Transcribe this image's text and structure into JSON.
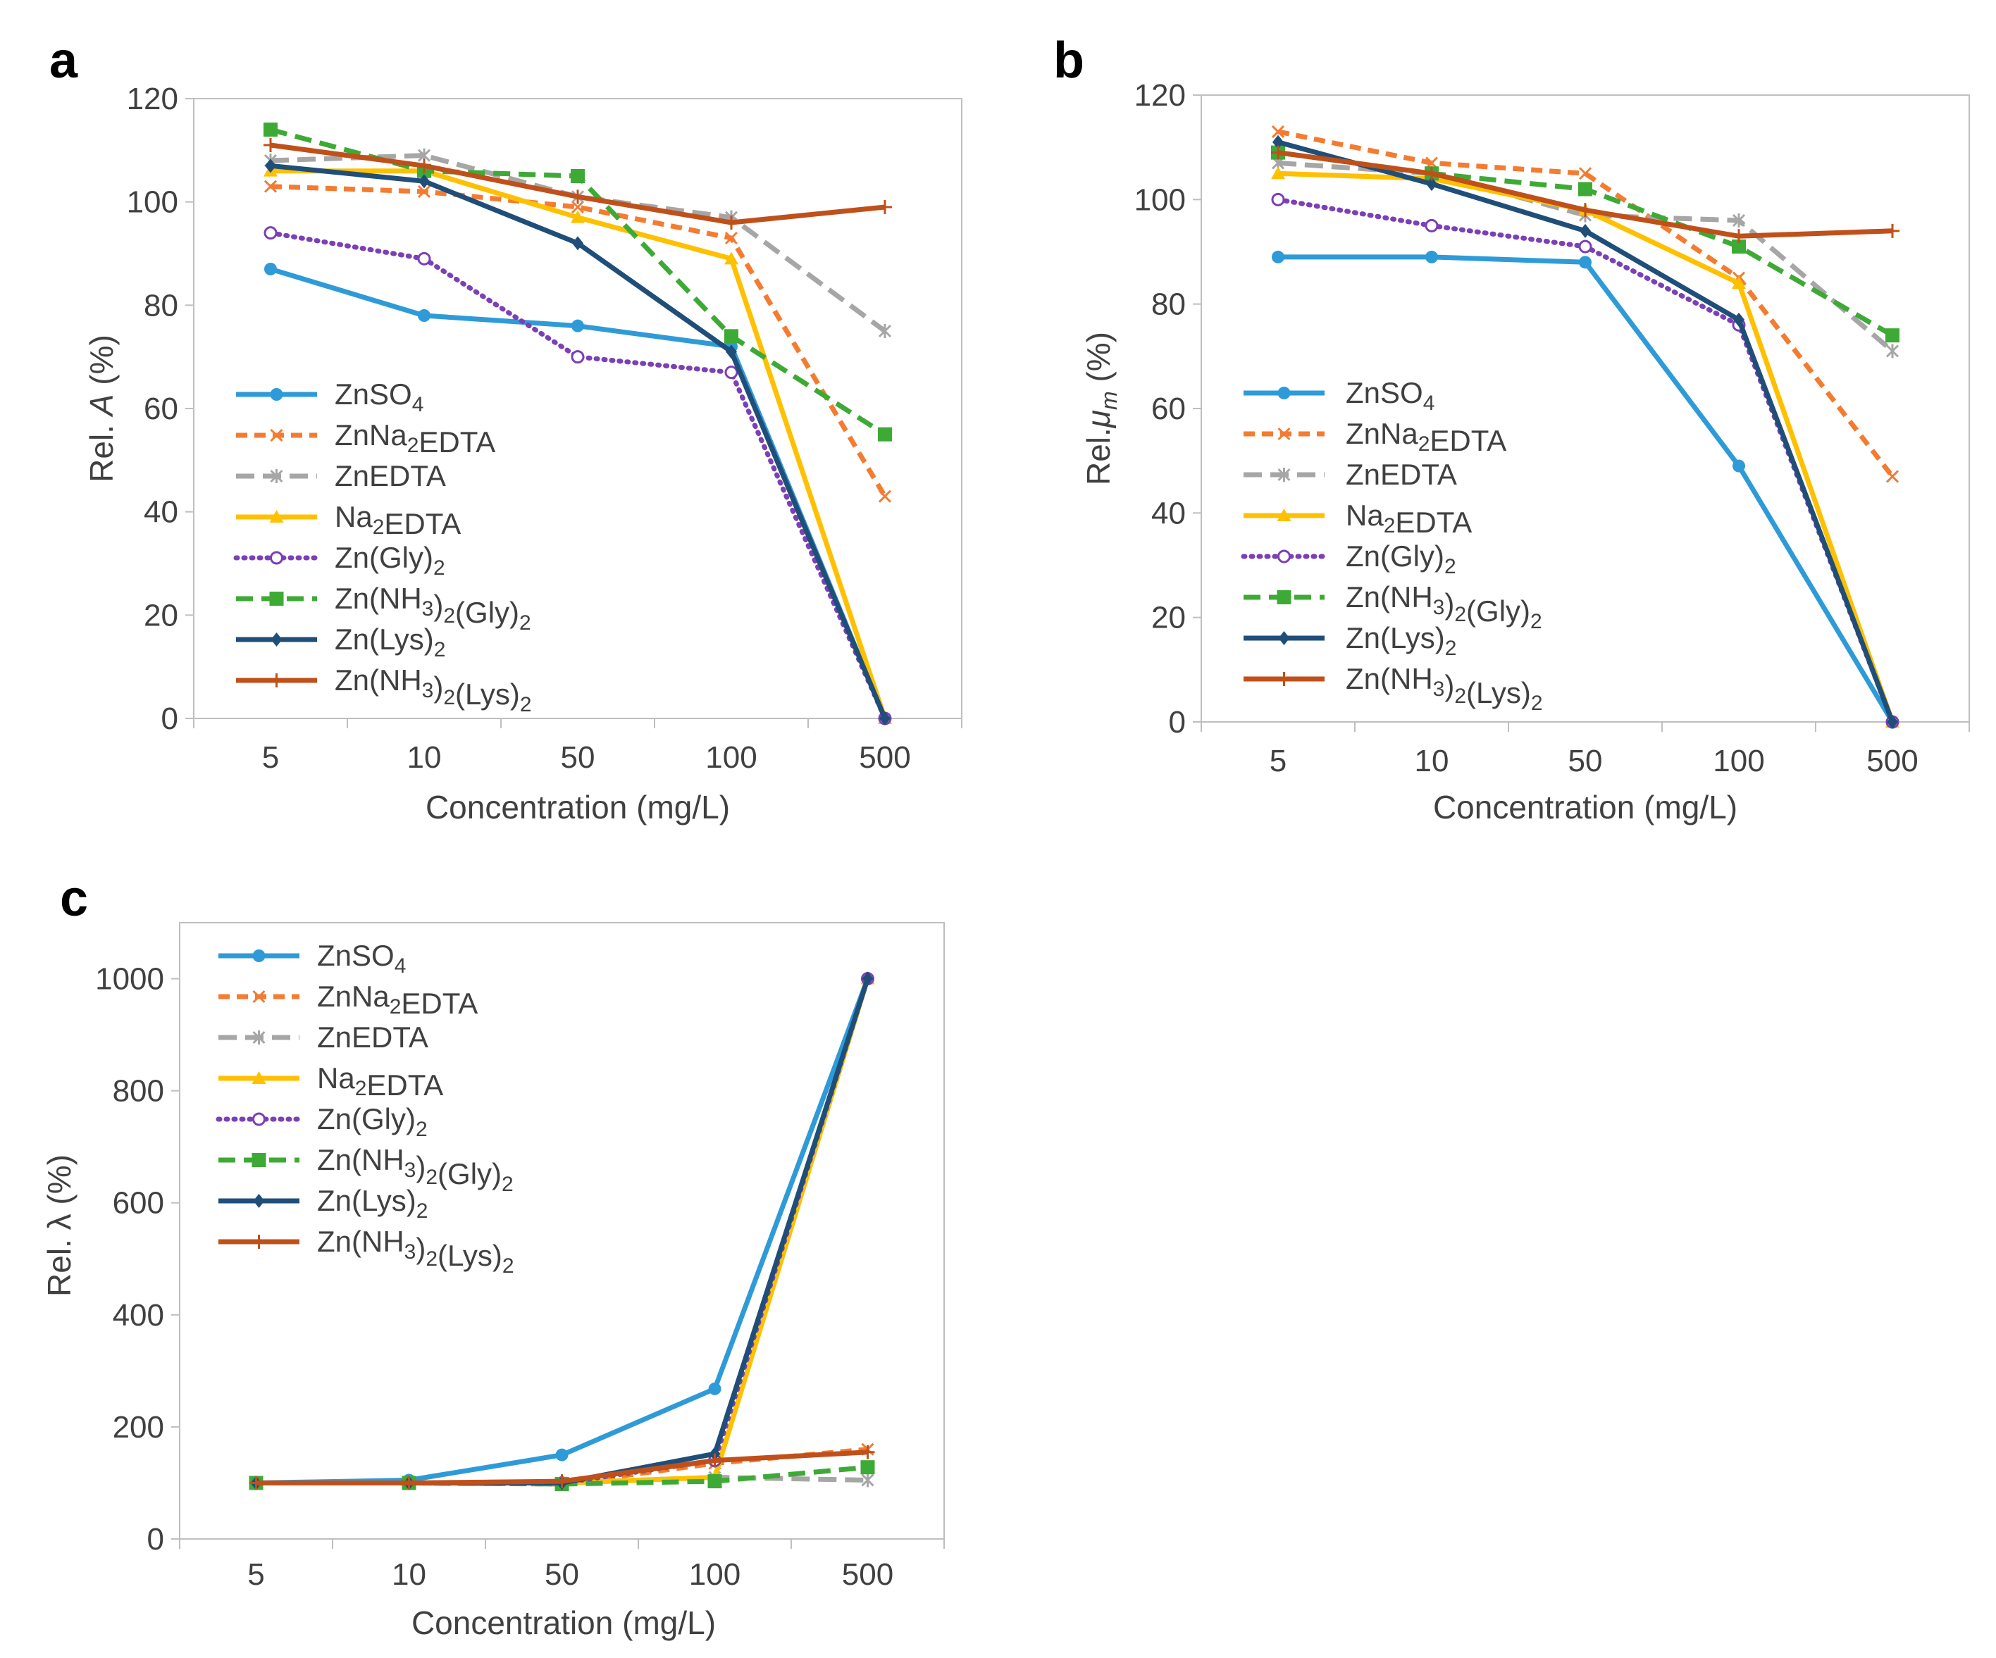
{
  "chart_data": [
    {
      "type": "line",
      "panel": "a",
      "x_title": "Concentration (mg/L)",
      "y_title_pre": "Rel. ",
      "y_title_var": "A",
      "y_title_post": " (%)",
      "categories": [
        "5",
        "10",
        "50",
        "100",
        "500"
      ],
      "ylim": [
        0,
        120
      ],
      "yticks": [
        0,
        20,
        40,
        60,
        80,
        100,
        120
      ],
      "legend_position": "bottom-left",
      "series": [
        {
          "name": "ZnSO₄",
          "values": [
            87,
            78,
            76,
            72,
            0
          ]
        },
        {
          "name": "ZnNa₂EDTA",
          "values": [
            103,
            102,
            99,
            93,
            43
          ]
        },
        {
          "name": "ZnEDTA",
          "values": [
            108,
            109,
            101,
            97,
            75
          ]
        },
        {
          "name": "Na₂EDTA",
          "values": [
            106,
            106,
            97,
            89,
            0
          ]
        },
        {
          "name": "Zn(Gly)₂",
          "values": [
            94,
            89,
            70,
            67,
            0
          ]
        },
        {
          "name": "Zn(NH₃)₂(Gly)₂",
          "values": [
            114,
            106,
            105,
            74,
            55
          ]
        },
        {
          "name": "Zn(Lys)₂",
          "values": [
            107,
            104,
            92,
            71,
            0
          ]
        },
        {
          "name": "Zn(NH₃)₂(Lys)₂",
          "values": [
            111,
            107,
            101,
            96,
            99
          ]
        }
      ]
    },
    {
      "type": "line",
      "panel": "b",
      "x_title": "Concentration (mg/L)",
      "y_title_pre": "Rel.",
      "y_title_var": "μ",
      "y_title_sub": "m",
      "y_title_post": " (%)",
      "categories": [
        "5",
        "10",
        "50",
        "100",
        "500"
      ],
      "ylim": [
        0,
        120
      ],
      "yticks": [
        0,
        20,
        40,
        60,
        80,
        100,
        120
      ],
      "legend_position": "bottom-left",
      "series": [
        {
          "name": "ZnSO₄",
          "values": [
            89,
            89,
            88,
            49,
            0
          ]
        },
        {
          "name": "ZnNa₂EDTA",
          "values": [
            113,
            107,
            105,
            85,
            47
          ]
        },
        {
          "name": "ZnEDTA",
          "values": [
            107,
            105,
            97,
            96,
            71
          ]
        },
        {
          "name": "Na₂EDTA",
          "values": [
            105,
            104,
            98,
            84,
            0
          ]
        },
        {
          "name": "Zn(Gly)₂",
          "values": [
            100,
            95,
            91,
            76,
            0
          ]
        },
        {
          "name": "Zn(NH₃)₂(Gly)₂",
          "values": [
            109,
            105,
            102,
            91,
            74
          ]
        },
        {
          "name": "Zn(Lys)₂",
          "values": [
            111,
            103,
            94,
            77,
            0
          ]
        },
        {
          "name": "Zn(NH₃)₂(Lys)₂",
          "values": [
            109,
            105,
            98,
            93,
            94
          ]
        }
      ]
    },
    {
      "type": "line",
      "panel": "c",
      "x_title": "Concentration (mg/L)",
      "y_title_pre": "Rel. ",
      "y_title_var": "λ",
      "y_title_post": " (%)",
      "categories": [
        "5",
        "10",
        "50",
        "100",
        "500"
      ],
      "ylim": [
        0,
        1100
      ],
      "yticks": [
        0,
        200,
        400,
        600,
        800,
        1000
      ],
      "legend_position": "top-left",
      "series": [
        {
          "name": "ZnSO₄",
          "values": [
            100,
            105,
            150,
            268,
            1000
          ]
        },
        {
          "name": "ZnNa₂EDTA",
          "values": [
            100,
            100,
            98,
            135,
            160
          ]
        },
        {
          "name": "ZnEDTA",
          "values": [
            100,
            100,
            100,
            110,
            105
          ]
        },
        {
          "name": "Na₂EDTA",
          "values": [
            100,
            100,
            100,
            110,
            1000
          ]
        },
        {
          "name": "Zn(Gly)₂",
          "values": [
            100,
            100,
            100,
            140,
            1000
          ]
        },
        {
          "name": "Zn(NH₃)₂(Gly)₂",
          "values": [
            100,
            100,
            98,
            103,
            128
          ]
        },
        {
          "name": "Zn(Lys)₂",
          "values": [
            100,
            100,
            100,
            152,
            1000
          ]
        },
        {
          "name": "Zn(NH₃)₂(Lys)₂",
          "values": [
            100,
            100,
            103,
            140,
            155
          ]
        }
      ]
    }
  ],
  "series_styles": [
    {
      "color": "#2E9BD8",
      "dash": "",
      "marker": "dot"
    },
    {
      "color": "#F47B30",
      "dash": "16,10",
      "marker": "x"
    },
    {
      "color": "#A6A6A6",
      "dash": "26,12",
      "marker": "star"
    },
    {
      "color": "#FFC000",
      "dash": "",
      "marker": "triangle"
    },
    {
      "color": "#7B3FB6",
      "dash": "2,9",
      "marker": "circle-open"
    },
    {
      "color": "#3DAA35",
      "dash": "24,12",
      "marker": "square"
    },
    {
      "color": "#1F4E79",
      "dash": "",
      "marker": "diamond"
    },
    {
      "color": "#C0501A",
      "dash": "",
      "marker": "plus"
    }
  ]
}
